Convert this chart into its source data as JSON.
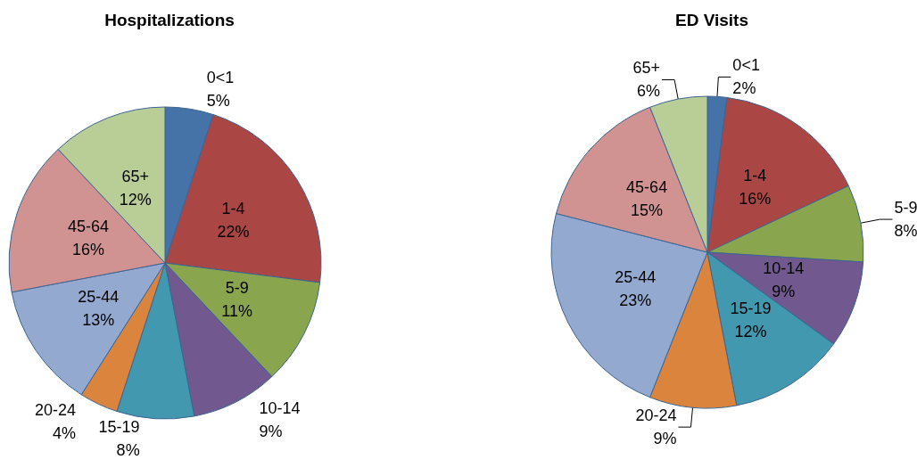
{
  "chart_data": [
    {
      "type": "pie",
      "title": "Hospitalizations",
      "categories": [
        "0<1",
        "1-4",
        "5-9",
        "10-14",
        "15-19",
        "20-24",
        "25-44",
        "45-64",
        "65+"
      ],
      "values": [
        5,
        22,
        11,
        9,
        8,
        4,
        13,
        16,
        12
      ],
      "value_labels": [
        "5%",
        "22%",
        "11%",
        "9%",
        "8%",
        "4%",
        "13%",
        "16%",
        "12%"
      ],
      "colors": [
        "#4572a7",
        "#aa4643",
        "#89a54e",
        "#71588f",
        "#4198af",
        "#db843d",
        "#93a9cf",
        "#d09392",
        "#b9cd96"
      ],
      "legend": false
    },
    {
      "type": "pie",
      "title": "ED Visits",
      "categories": [
        "0<1",
        "1-4",
        "5-9",
        "10-14",
        "15-19",
        "20-24",
        "25-44",
        "45-64",
        "65+"
      ],
      "values": [
        2,
        16,
        8,
        9,
        12,
        9,
        23,
        15,
        6
      ],
      "value_labels": [
        "2%",
        "16%",
        "8%",
        "9%",
        "12%",
        "9%",
        "23%",
        "15%",
        "6%"
      ],
      "colors": [
        "#4572a7",
        "#aa4643",
        "#89a54e",
        "#71588f",
        "#4198af",
        "#db843d",
        "#93a9cf",
        "#d09392",
        "#b9cd96"
      ],
      "legend": false
    }
  ]
}
